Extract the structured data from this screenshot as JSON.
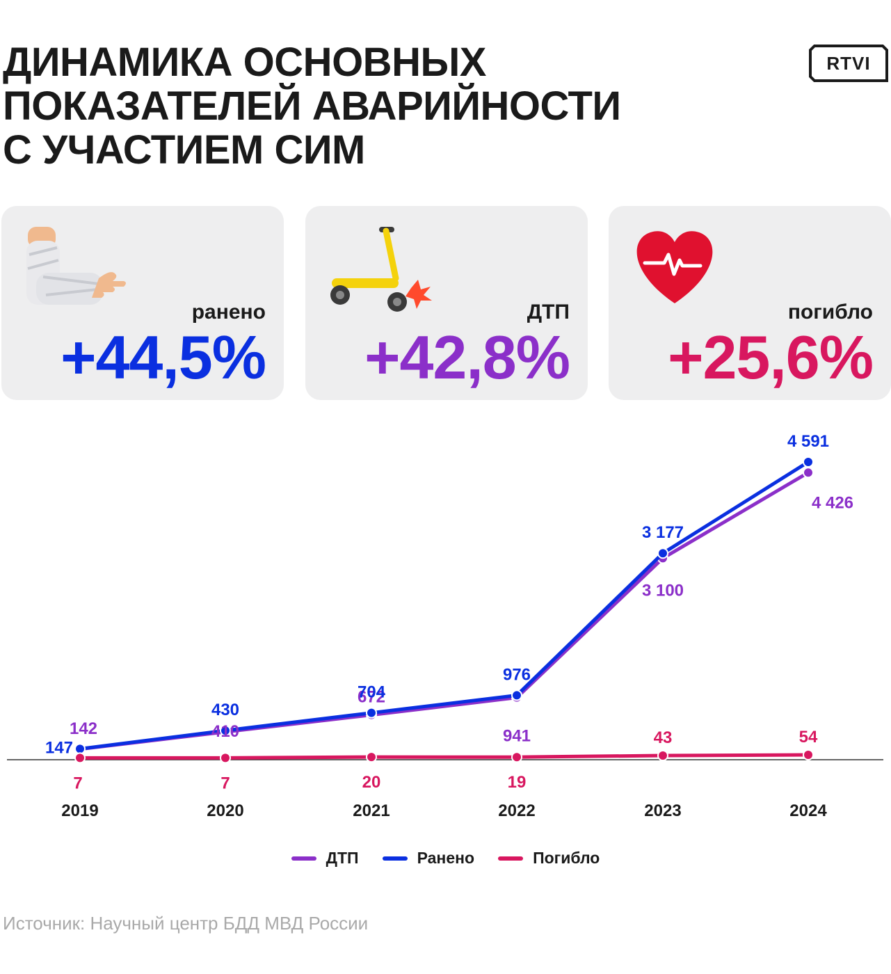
{
  "title_lines": [
    "ДИНАМИКА ОСНОВНЫХ",
    "ПОКАЗАТЕЛЕЙ АВАРИЙНОСТИ",
    "С УЧАСТИЕМ СИМ"
  ],
  "logo": "RTVI",
  "colors": {
    "injured": "#0a2fe0",
    "accidents": "#8b2fc9",
    "killed": "#d8175f",
    "card_bg": "#eeeeef"
  },
  "cards": [
    {
      "label": "ранено",
      "value": "+44,5%",
      "icon": "bandaged-arm-icon"
    },
    {
      "label": "ДТП",
      "value": "+42,8%",
      "icon": "scooter-crash-icon"
    },
    {
      "label": "погибло",
      "value": "+25,6%",
      "icon": "heart-pulse-icon"
    }
  ],
  "chart_data": {
    "type": "line",
    "categories": [
      "2019",
      "2020",
      "2021",
      "2022",
      "2023",
      "2024"
    ],
    "series": [
      {
        "name": "ДТП",
        "values": [
          142,
          410,
          672,
          941,
          3100,
          4426
        ],
        "labels": [
          "142",
          "410",
          "672",
          "941",
          "3 100",
          "4 426"
        ]
      },
      {
        "name": "Ранено",
        "values": [
          147,
          430,
          704,
          976,
          3177,
          4591
        ],
        "labels": [
          "147",
          "430",
          "704",
          "976",
          "3 177",
          "4 591"
        ]
      },
      {
        "name": "Погибло",
        "values": [
          7,
          7,
          20,
          19,
          43,
          54
        ],
        "labels": [
          "7",
          "7",
          "20",
          "19",
          "43",
          "54"
        ]
      }
    ],
    "legend": [
      "ДТП",
      "Ранено",
      "Погибло"
    ],
    "legend_position": "bottom-center",
    "grid": false
  },
  "source": "Источник: Научный центр БДД МВД России"
}
